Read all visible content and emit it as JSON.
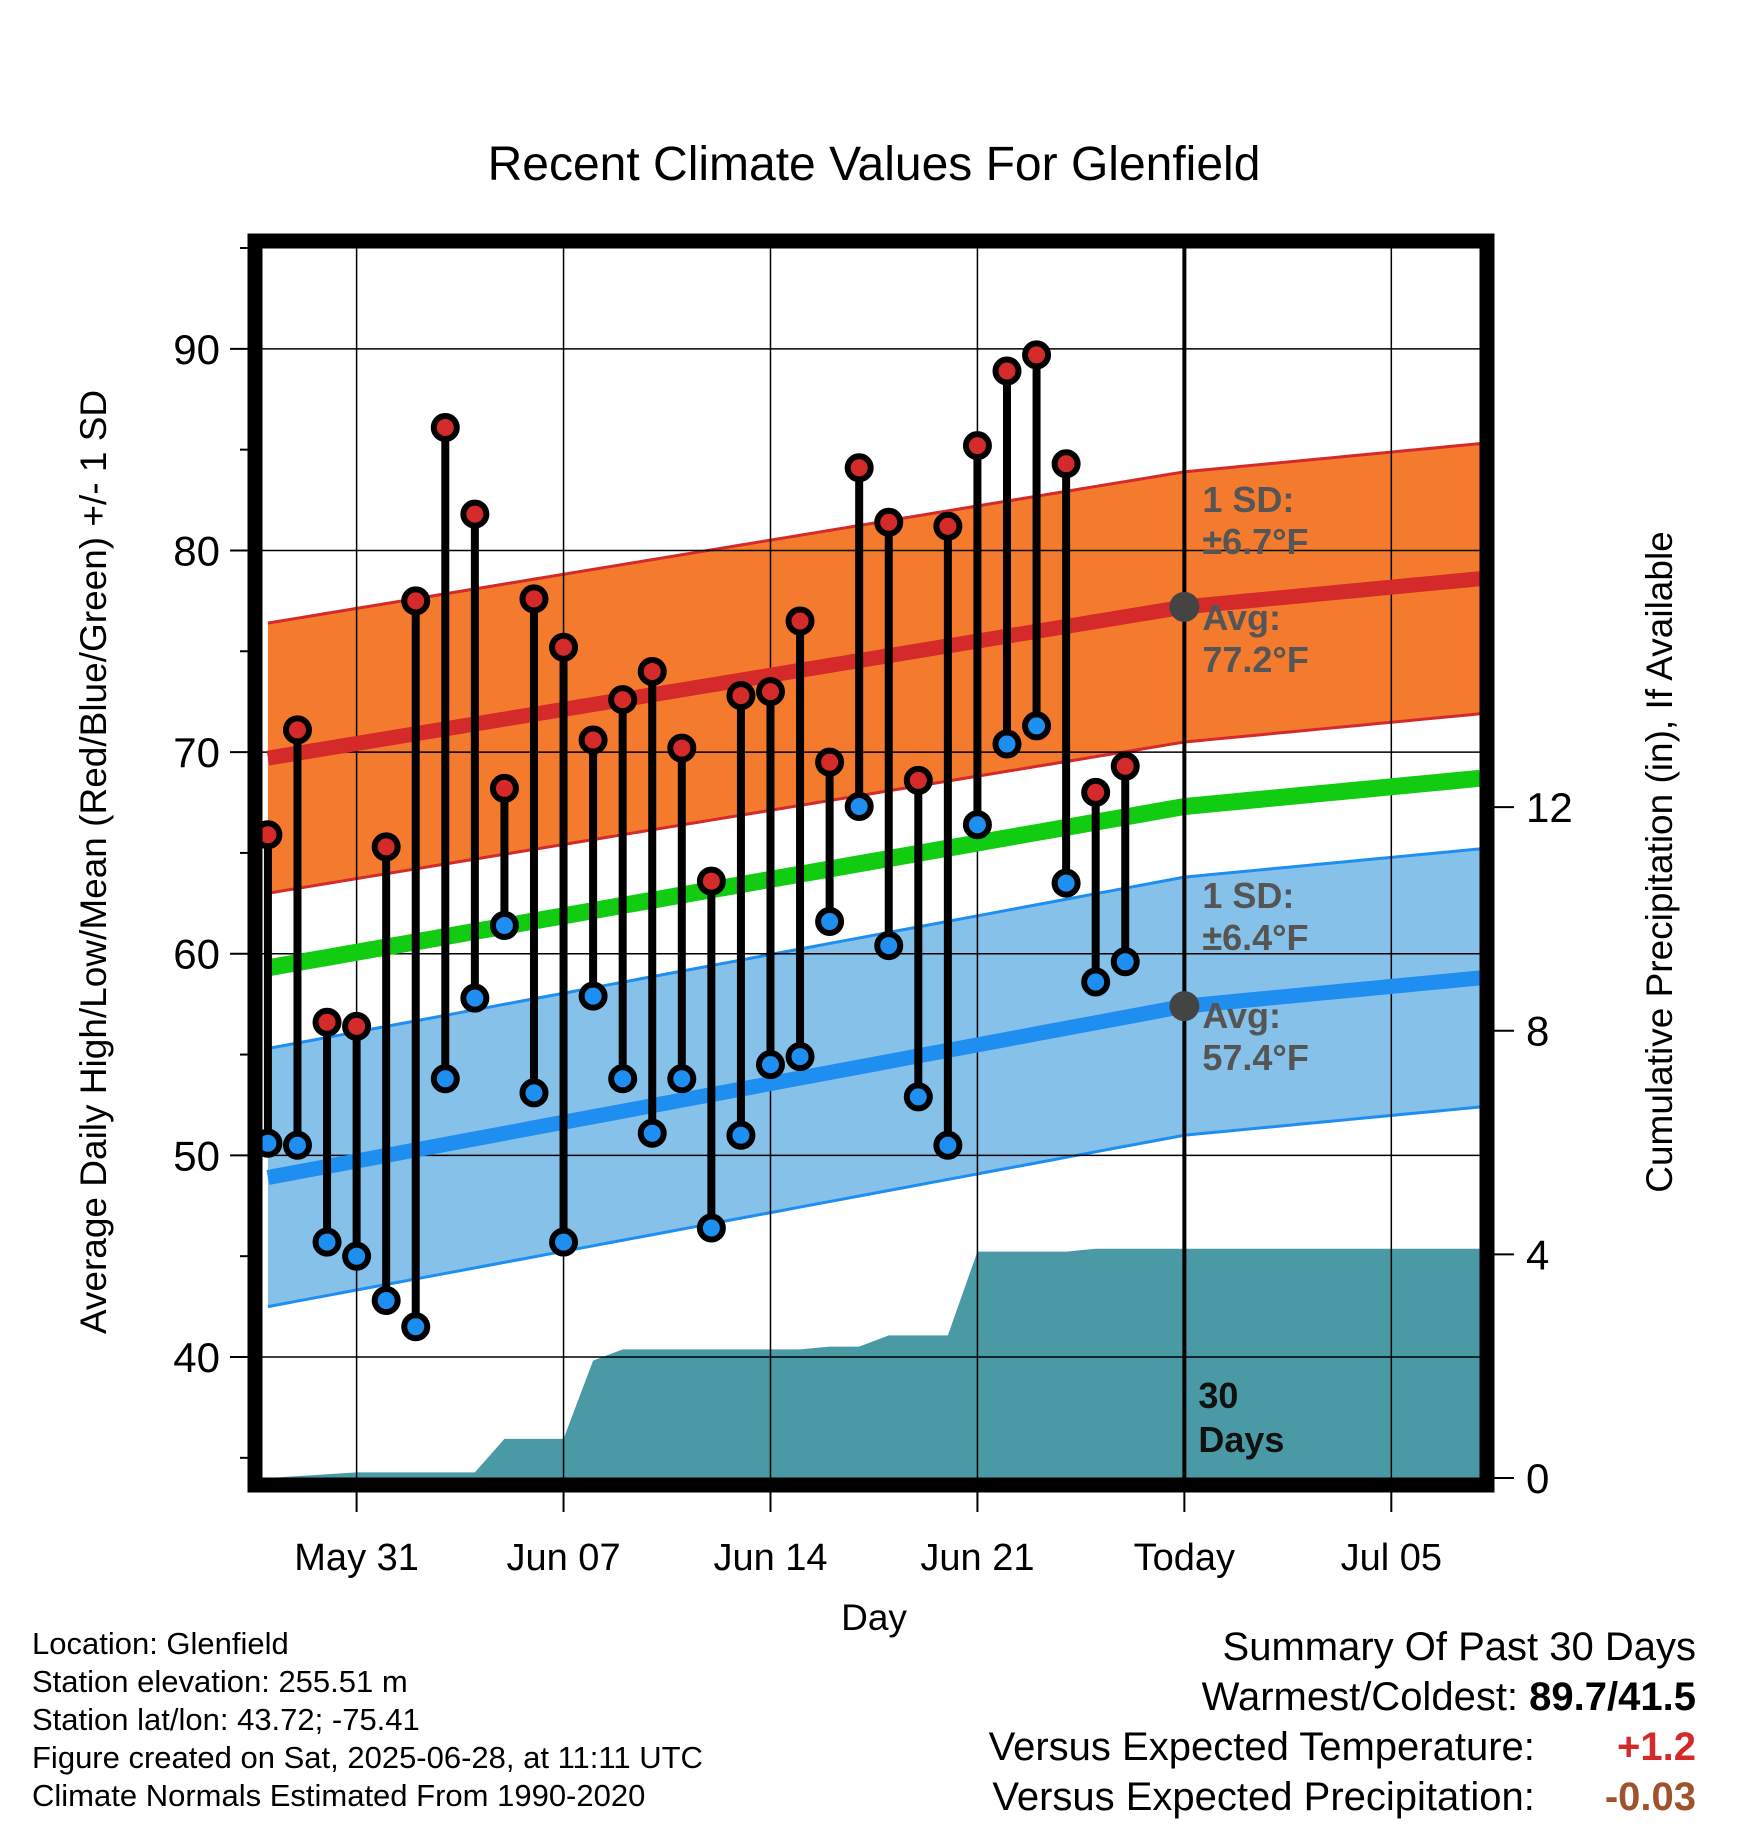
{
  "chart_data": {
    "type": "line",
    "title": "Recent Climate Values For Glenfield",
    "xlabel": "Day",
    "ylabel_left": "Average Daily High/Low/Mean (Red/Blue/Green) +/- 1 SD",
    "ylabel_right": "Cumulative Precipitation (in), If Available",
    "x_ticks": [
      {
        "day": 4,
        "label": "May 31"
      },
      {
        "day": 11,
        "label": "Jun 07"
      },
      {
        "day": 18,
        "label": "Jun 14"
      },
      {
        "day": 25,
        "label": "Jun 21"
      },
      {
        "day": 32,
        "label": "Today"
      },
      {
        "day": 39,
        "label": "Jul 05"
      }
    ],
    "xlim": [
      0.8,
      42
    ],
    "ylim_left": [
      34,
      95
    ],
    "y_ticks_left": [
      40,
      50,
      60,
      70,
      80,
      90
    ],
    "ylim_right": [
      0,
      22
    ],
    "y_ticks_right": [
      0,
      4,
      8,
      12
    ],
    "today_day": 32,
    "normals": {
      "days": [
        1,
        32,
        42
      ],
      "avg_high": [
        69.7,
        77.2,
        78.6
      ],
      "sd_high": 6.7,
      "avg_low": [
        48.9,
        57.4,
        58.8
      ],
      "sd_low": 6.4,
      "avg_mean": [
        59.3,
        67.3,
        68.7
      ]
    },
    "series": [
      {
        "name": "High",
        "days": [
          1,
          2,
          3,
          4,
          5,
          6,
          7,
          8,
          9,
          10,
          11,
          12,
          13,
          14,
          15,
          16,
          17,
          18,
          19,
          20,
          21,
          22,
          23,
          24,
          25,
          26,
          27,
          28,
          29,
          30
        ],
        "values": [
          65.9,
          71.1,
          56.6,
          56.4,
          65.3,
          77.5,
          86.1,
          81.8,
          68.2,
          77.6,
          75.2,
          70.6,
          72.6,
          74.0,
          70.2,
          63.6,
          72.8,
          73.0,
          76.5,
          69.5,
          84.1,
          81.4,
          68.6,
          81.2,
          85.2,
          88.9,
          89.7,
          84.3,
          68.0,
          69.3
        ]
      },
      {
        "name": "Low",
        "days": [
          1,
          2,
          3,
          4,
          5,
          6,
          7,
          8,
          9,
          10,
          11,
          12,
          13,
          14,
          15,
          16,
          17,
          18,
          19,
          20,
          21,
          22,
          23,
          24,
          25,
          26,
          27,
          28,
          29,
          30
        ],
        "values": [
          50.6,
          50.5,
          45.7,
          45.0,
          42.8,
          41.5,
          53.8,
          57.8,
          61.4,
          53.1,
          45.7,
          57.9,
          53.8,
          51.1,
          53.8,
          46.4,
          51.0,
          54.5,
          54.9,
          61.6,
          67.3,
          60.4,
          52.9,
          50.5,
          66.4,
          70.4,
          71.3,
          63.5,
          58.6,
          59.6
        ]
      },
      {
        "name": "Cumulative Precipitation",
        "days": [
          1,
          4,
          5,
          6,
          7,
          8,
          9,
          10,
          11,
          12,
          13,
          14,
          15,
          16,
          17,
          18,
          19,
          20,
          21,
          22,
          23,
          24,
          25,
          26,
          27,
          28,
          29,
          30,
          42
        ],
        "values": [
          0.0,
          0.1,
          0.1,
          0.1,
          0.1,
          0.1,
          0.7,
          0.7,
          0.7,
          2.1,
          2.3,
          2.3,
          2.3,
          2.3,
          2.3,
          2.3,
          2.3,
          2.35,
          2.35,
          2.55,
          2.55,
          2.55,
          4.05,
          4.05,
          4.05,
          4.05,
          4.1,
          4.1,
          4.1
        ]
      }
    ],
    "annotations": {
      "high_sd_label": "1 SD:",
      "high_sd_value": "±6.7°F",
      "high_avg_label": "Avg:",
      "high_avg_value": "77.2°F",
      "low_sd_label": "1 SD:",
      "low_sd_value": "±6.4°F",
      "low_avg_label": "Avg:",
      "low_avg_value": "57.4°F",
      "days_count": "30",
      "days_word": "Days"
    },
    "colors": {
      "high_band": "#f47a2e",
      "high_line": "#d42a2a",
      "low_band": "#85c1e9",
      "low_line": "#1e8ff0",
      "mean_line": "#11cc11",
      "precip": "#4a9aa5",
      "high_marker": "#d42a2a",
      "low_marker": "#1e8ff0",
      "avg_dot": "#444444",
      "annotation_text": "#555555"
    },
    "grid": true
  },
  "footer": {
    "location": "Location: Glenfield",
    "elevation": "Station elevation: 255.51 m",
    "latlon": "Station lat/lon: 43.72; -75.41",
    "created": "Figure created on Sat, 2025-06-28, at 11:11 UTC",
    "normals": "Climate Normals Estimated From 1990-2020"
  },
  "summary": {
    "heading": "Summary Of Past 30 Days",
    "warmest_coldest_label": "Warmest/Coldest:",
    "warmest_coldest_value": "89.7/41.5",
    "temp_label": "Versus Expected Temperature:",
    "temp_value": "+1.2",
    "temp_color": "#d42a2a",
    "precip_label": "Versus Expected Precipitation:",
    "precip_value": "-0.03",
    "precip_color": "#a0522d"
  }
}
